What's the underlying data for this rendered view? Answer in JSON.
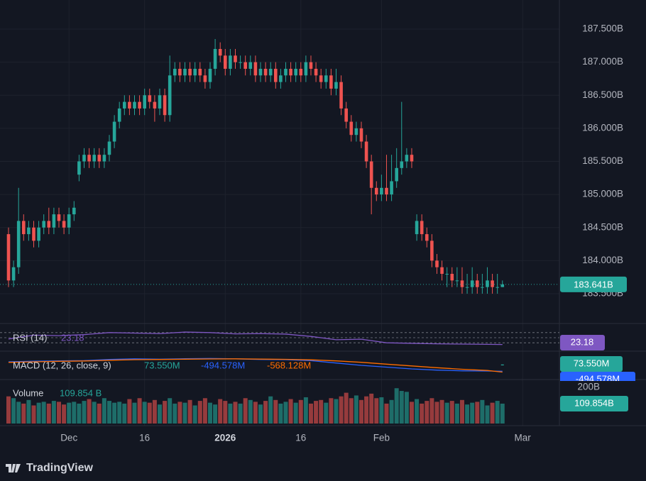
{
  "chart_data": {
    "type": "candlestick",
    "xlim": [
      -1.69,
      109.3
    ],
    "xticks": [
      {
        "value": 12,
        "label": "Dec"
      },
      {
        "value": 27,
        "label": "16"
      },
      {
        "value": 43,
        "label": "2026"
      },
      {
        "value": 58,
        "label": "16"
      },
      {
        "value": 74,
        "label": "Feb"
      },
      {
        "value": 102,
        "label": "Mar"
      }
    ],
    "up_color": "#26a69a",
    "down_color": "#ef5350",
    "grid": true,
    "price": {
      "ylim": [
        183.06,
        187.94
      ],
      "yticks": [
        {
          "value": 183.5,
          "label": "183.500B"
        },
        {
          "value": 184,
          "label": "184.000B"
        },
        {
          "value": 184.5,
          "label": "184.500B"
        },
        {
          "value": 185,
          "label": "185.000B"
        },
        {
          "value": 185.5,
          "label": "185.500B"
        },
        {
          "value": 186,
          "label": "186.000B"
        },
        {
          "value": 186.5,
          "label": "186.500B"
        },
        {
          "value": 187,
          "label": "187.000B"
        },
        {
          "value": 187.5,
          "label": "187.500B"
        }
      ],
      "open": [
        184.4,
        183.7,
        183.9,
        184.6,
        184.4,
        184.5,
        184.3,
        184.5,
        184.6,
        184.5,
        184.7,
        184.6,
        184.5,
        184.7,
        185.3,
        185.5,
        185.6,
        185.5,
        185.6,
        185.5,
        185.6,
        185.8,
        186.1,
        186.3,
        186.4,
        186.3,
        186.4,
        186.3,
        186.5,
        186.4,
        186.3,
        186.5,
        186.2,
        186.8,
        186.9,
        186.8,
        186.9,
        186.8,
        186.9,
        186.8,
        186.7,
        186.9,
        187.2,
        187.1,
        186.9,
        187.1,
        187.0,
        187.0,
        186.9,
        187.0,
        186.8,
        186.9,
        186.8,
        186.9,
        186.7,
        186.8,
        186.9,
        186.8,
        186.9,
        186.8,
        187.0,
        186.9,
        186.8,
        186.7,
        186.8,
        186.6,
        186.7,
        186.3,
        186.1,
        185.9,
        186.0,
        185.8,
        185.5,
        185.1,
        185.0,
        185.1,
        185.0,
        185.2,
        185.4,
        185.5,
        185.6,
        184.4,
        184.6,
        184.4,
        184.3,
        184.0,
        183.9,
        183.8,
        183.8,
        183.7,
        183.7,
        183.6,
        183.6,
        183.7,
        183.6,
        183.6,
        183.7,
        183.6,
        183.6
      ],
      "high": [
        184.5,
        184.0,
        185.1,
        184.7,
        184.6,
        184.6,
        184.6,
        184.7,
        184.8,
        184.8,
        184.8,
        184.7,
        184.8,
        184.9,
        185.6,
        185.7,
        185.7,
        185.7,
        185.7,
        185.7,
        185.9,
        186.2,
        186.4,
        186.5,
        186.5,
        186.5,
        186.5,
        186.6,
        186.6,
        186.5,
        186.6,
        186.6,
        187.1,
        187.0,
        187.0,
        187.0,
        187.0,
        187.0,
        187.0,
        186.9,
        187.0,
        187.35,
        187.3,
        187.2,
        187.2,
        187.2,
        187.1,
        187.1,
        187.1,
        187.1,
        187.0,
        187.0,
        187.0,
        187.0,
        186.9,
        187.0,
        187.0,
        187.0,
        187.0,
        187.1,
        187.1,
        187.0,
        186.9,
        186.9,
        186.9,
        186.9,
        186.8,
        186.4,
        186.2,
        186.1,
        186.1,
        185.9,
        185.6,
        185.2,
        185.3,
        185.6,
        185.6,
        185.7,
        186.4,
        185.7,
        185.7,
        184.7,
        184.7,
        184.5,
        184.4,
        184.1,
        184.0,
        183.9,
        183.9,
        183.9,
        183.9,
        183.8,
        183.9,
        183.8,
        183.8,
        183.9,
        183.8,
        183.8,
        183.7
      ],
      "low": [
        183.6,
        183.6,
        183.8,
        184.3,
        184.3,
        184.2,
        184.2,
        184.4,
        184.4,
        184.4,
        184.5,
        184.4,
        184.4,
        184.6,
        185.2,
        185.4,
        185.4,
        185.4,
        185.4,
        185.4,
        185.5,
        185.7,
        186.0,
        186.2,
        186.2,
        186.2,
        186.2,
        186.2,
        186.3,
        186.1,
        186.2,
        186.1,
        186.1,
        186.7,
        186.7,
        186.7,
        186.7,
        186.7,
        186.7,
        186.6,
        186.6,
        186.8,
        187.0,
        186.8,
        186.8,
        186.9,
        186.9,
        186.8,
        186.8,
        186.7,
        186.7,
        186.7,
        186.7,
        186.6,
        186.6,
        186.7,
        186.7,
        186.7,
        186.7,
        186.7,
        186.8,
        186.7,
        186.6,
        186.6,
        186.5,
        186.5,
        186.2,
        186.0,
        185.8,
        185.8,
        185.7,
        185.4,
        184.7,
        184.9,
        184.9,
        184.9,
        184.9,
        185.1,
        185.3,
        185.4,
        185.4,
        184.3,
        184.3,
        184.2,
        183.9,
        183.8,
        183.7,
        183.6,
        183.6,
        183.6,
        183.5,
        183.5,
        183.5,
        183.5,
        183.5,
        183.5,
        183.5,
        183.5,
        183.6
      ],
      "close": [
        183.7,
        183.9,
        184.6,
        184.4,
        184.5,
        184.3,
        184.5,
        184.6,
        184.5,
        184.7,
        184.6,
        184.5,
        184.7,
        184.8,
        185.5,
        185.6,
        185.5,
        185.6,
        185.5,
        185.6,
        185.8,
        186.1,
        186.3,
        186.4,
        186.3,
        186.4,
        186.3,
        186.5,
        186.4,
        186.3,
        186.5,
        186.2,
        186.8,
        186.9,
        186.8,
        186.9,
        186.8,
        186.9,
        186.8,
        186.7,
        186.9,
        187.2,
        187.1,
        186.9,
        187.1,
        187.0,
        187.0,
        186.9,
        187.0,
        186.8,
        186.9,
        186.8,
        186.9,
        186.7,
        186.8,
        186.9,
        186.8,
        186.9,
        186.8,
        187.0,
        186.9,
        186.8,
        186.7,
        186.8,
        186.6,
        186.7,
        186.3,
        186.1,
        185.9,
        186.0,
        185.8,
        185.5,
        185.1,
        185.0,
        185.1,
        185.0,
        185.2,
        185.4,
        185.5,
        185.6,
        185.5,
        184.6,
        184.4,
        184.3,
        184.0,
        183.9,
        183.8,
        183.8,
        183.7,
        183.7,
        183.6,
        183.6,
        183.7,
        183.6,
        183.6,
        183.7,
        183.6,
        183.6,
        183.641
      ],
      "last_label": "183.641B"
    },
    "rsi": {
      "type": "line",
      "title": "RSI (14)",
      "color": "#7e57c2",
      "ylim": [
        0,
        100
      ],
      "levels": [
        70,
        50,
        30
      ],
      "x": [
        0,
        5,
        10,
        15,
        20,
        25,
        30,
        35,
        40,
        45,
        50,
        55,
        60,
        65,
        70,
        75,
        80,
        85,
        90,
        95,
        98
      ],
      "values": [
        45,
        60,
        58,
        62,
        70,
        68,
        66,
        72,
        70,
        65,
        66,
        64,
        55,
        42,
        44,
        30,
        28,
        26,
        25,
        24,
        23.18
      ],
      "last_label": "23.18"
    },
    "macd": {
      "type": "line",
      "title": "MACD (12, 26, close, 9)",
      "ylim": [
        -1080,
        1080
      ],
      "x": [
        0,
        5,
        10,
        15,
        20,
        25,
        30,
        35,
        40,
        45,
        50,
        55,
        60,
        65,
        70,
        75,
        80,
        85,
        90,
        95,
        98
      ],
      "histogram": {
        "x": 98,
        "value": 73.55,
        "label": "73.550M",
        "color": "#26a69a"
      },
      "series": [
        {
          "color": "#2962ff",
          "values": [
            300,
            350,
            380,
            400,
            500,
            550,
            520,
            560,
            580,
            550,
            500,
            480,
            400,
            200,
            0,
            -150,
            -300,
            -400,
            -460,
            -480,
            -494.578
          ],
          "last_label": "-494.578M"
        },
        {
          "color": "#ff6d00",
          "values": [
            250,
            300,
            340,
            370,
            430,
            480,
            500,
            520,
            540,
            550,
            530,
            510,
            470,
            380,
            260,
            100,
            -50,
            -200,
            -330,
            -430,
            -568.128
          ],
          "last_label": "-568.128M"
        }
      ]
    },
    "volume": {
      "type": "bar",
      "title": "Volume",
      "ylim": [
        0,
        235
      ],
      "yticks": [
        {
          "value": 200,
          "label": "200B"
        }
      ],
      "values": [
        150,
        140,
        120,
        110,
        130,
        100,
        115,
        120,
        110,
        125,
        120,
        105,
        115,
        120,
        110,
        125,
        135,
        120,
        110,
        140,
        125,
        115,
        120,
        110,
        135,
        115,
        140,
        120,
        115,
        130,
        105,
        125,
        140,
        110,
        120,
        115,
        130,
        100,
        125,
        140,
        115,
        105,
        135,
        125,
        110,
        120,
        110,
        140,
        130,
        120,
        105,
        125,
        150,
        130,
        110,
        120,
        135,
        115,
        130,
        145,
        110,
        125,
        130,
        115,
        140,
        135,
        150,
        170,
        140,
        155,
        130,
        150,
        165,
        140,
        145,
        110,
        130,
        195,
        180,
        175,
        120,
        135,
        110,
        125,
        140,
        120,
        130,
        115,
        125,
        110,
        130,
        105,
        115,
        120,
        130,
        100,
        115,
        125,
        109.854
      ],
      "legend_label": "109.854 B",
      "last_label": "109.854B"
    }
  },
  "brand": "TradingView"
}
